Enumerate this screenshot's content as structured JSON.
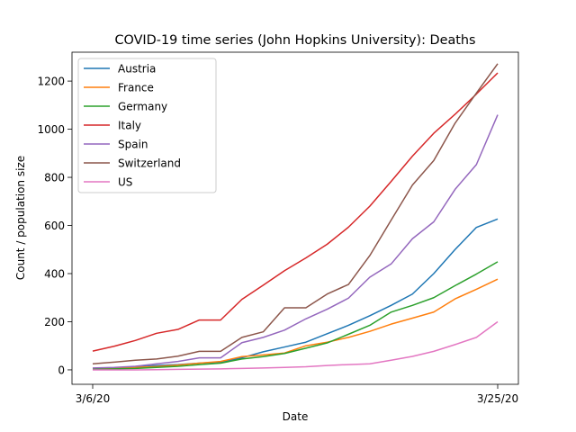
{
  "chart_data": {
    "type": "line",
    "title": "COVID-19 time series (John Hopkins University): Deaths",
    "xlabel": "Date",
    "ylabel": "Count / population size",
    "x": [
      "3/6/20",
      "3/7/20",
      "3/8/20",
      "3/9/20",
      "3/10/20",
      "3/11/20",
      "3/12/20",
      "3/13/20",
      "3/14/20",
      "3/15/20",
      "3/16/20",
      "3/17/20",
      "3/18/20",
      "3/19/20",
      "3/20/20",
      "3/21/20",
      "3/22/20",
      "3/23/20",
      "3/24/20",
      "3/25/20"
    ],
    "x_tick_labels": [
      "3/6/20",
      "3/25/20"
    ],
    "ylim": [
      -60,
      1320
    ],
    "y_ticks": [
      0,
      200,
      400,
      600,
      800,
      1000,
      1200
    ],
    "grid": false,
    "legend_position": "upper-left",
    "series": [
      {
        "name": "Austria",
        "color": "#1f77b4",
        "values": [
          5,
          8,
          12,
          18,
          22,
          28,
          32,
          50,
          75,
          95,
          115,
          150,
          185,
          225,
          268,
          315,
          400,
          500,
          592,
          627
        ]
      },
      {
        "name": "France",
        "color": "#ff7f0e",
        "values": [
          3,
          6,
          10,
          14,
          20,
          28,
          35,
          55,
          62,
          70,
          100,
          115,
          135,
          160,
          190,
          215,
          240,
          295,
          335,
          377
        ]
      },
      {
        "name": "Germany",
        "color": "#2ca02c",
        "values": [
          2,
          4,
          6,
          10,
          15,
          22,
          28,
          45,
          55,
          68,
          90,
          112,
          148,
          185,
          240,
          268,
          300,
          350,
          398,
          449
        ]
      },
      {
        "name": "Italy",
        "color": "#d62728",
        "values": [
          78,
          98,
          122,
          152,
          168,
          207,
          207,
          293,
          352,
          412,
          465,
          522,
          593,
          680,
          783,
          888,
          983,
          1062,
          1146,
          1234
        ]
      },
      {
        "name": "Spain",
        "color": "#9467bd",
        "values": [
          8,
          10,
          15,
          25,
          35,
          50,
          50,
          113,
          135,
          165,
          212,
          252,
          298,
          385,
          440,
          545,
          615,
          750,
          853,
          1060
        ]
      },
      {
        "name": "Switzerland",
        "color": "#8c564b",
        "values": [
          25,
          32,
          40,
          45,
          57,
          77,
          77,
          135,
          158,
          258,
          258,
          315,
          355,
          475,
          622,
          768,
          870,
          1025,
          1150,
          1272
        ]
      },
      {
        "name": "US",
        "color": "#e377c2",
        "values": [
          0,
          0,
          0,
          1,
          2,
          3,
          4,
          6,
          8,
          10,
          13,
          18,
          22,
          25,
          40,
          56,
          77,
          105,
          135,
          200
        ]
      }
    ]
  }
}
